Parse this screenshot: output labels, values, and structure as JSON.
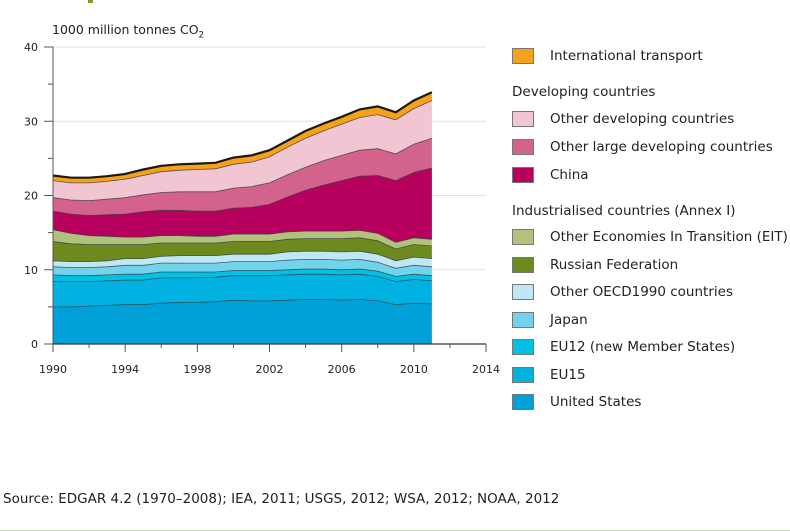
{
  "chart_data": {
    "type": "area",
    "stacked": true,
    "title": "",
    "ylabel": "1000 million tonnes CO2",
    "ylabel_main": "1000 million tonnes CO",
    "ylabel_sub": "2",
    "xlabel": "",
    "xlim": [
      1990,
      2014
    ],
    "ylim": [
      0,
      40
    ],
    "yticks": [
      0,
      10,
      20,
      30,
      40
    ],
    "xticks": [
      1990,
      1994,
      1998,
      2002,
      2006,
      2010,
      2014
    ],
    "ytick_labels": [
      "0",
      "10",
      "20",
      "30",
      "40"
    ],
    "xtick_labels": [
      "1990",
      "1994",
      "1998",
      "2002",
      "2006",
      "2010",
      "2014"
    ],
    "grid": "horizontal",
    "legend_position": "right",
    "x": [
      1990,
      1991,
      1992,
      1993,
      1994,
      1995,
      1996,
      1997,
      1998,
      1999,
      2000,
      2001,
      2002,
      2003,
      2004,
      2005,
      2006,
      2007,
      2008,
      2009,
      2010,
      2011
    ],
    "series": [
      {
        "name": "United States",
        "color": "#00a0d8",
        "values": [
          5.0,
          5.0,
          5.1,
          5.2,
          5.3,
          5.3,
          5.5,
          5.6,
          5.6,
          5.7,
          5.9,
          5.8,
          5.8,
          5.9,
          6.0,
          6.0,
          5.9,
          6.0,
          5.8,
          5.3,
          5.5,
          5.4
        ]
      },
      {
        "name": "EU15",
        "color": "#00b1e2",
        "values": [
          3.4,
          3.4,
          3.3,
          3.3,
          3.3,
          3.3,
          3.4,
          3.3,
          3.3,
          3.3,
          3.3,
          3.4,
          3.4,
          3.4,
          3.4,
          3.4,
          3.4,
          3.4,
          3.3,
          3.1,
          3.2,
          3.1
        ]
      },
      {
        "name": "EU12 (new Member States)",
        "color": "#00c1e3",
        "values": [
          0.9,
          0.8,
          0.8,
          0.8,
          0.8,
          0.8,
          0.8,
          0.8,
          0.8,
          0.7,
          0.7,
          0.7,
          0.7,
          0.7,
          0.7,
          0.7,
          0.7,
          0.7,
          0.7,
          0.7,
          0.7,
          0.7
        ]
      },
      {
        "name": "Japan",
        "color": "#73d2ec",
        "values": [
          1.1,
          1.1,
          1.1,
          1.1,
          1.2,
          1.2,
          1.2,
          1.2,
          1.2,
          1.2,
          1.2,
          1.2,
          1.2,
          1.3,
          1.3,
          1.3,
          1.3,
          1.3,
          1.2,
          1.1,
          1.2,
          1.2
        ]
      },
      {
        "name": "Other OECD1990 countries",
        "color": "#bfe8f4",
        "values": [
          0.8,
          0.8,
          0.8,
          0.8,
          0.9,
          0.9,
          0.9,
          1.0,
          1.0,
          1.0,
          1.0,
          1.0,
          1.0,
          1.1,
          1.1,
          1.1,
          1.1,
          1.1,
          1.1,
          1.0,
          1.1,
          1.1
        ]
      },
      {
        "name": "Russian Federation",
        "color": "#6e8a1e",
        "values": [
          2.6,
          2.4,
          2.3,
          2.2,
          1.9,
          1.9,
          1.8,
          1.7,
          1.7,
          1.7,
          1.7,
          1.7,
          1.7,
          1.7,
          1.7,
          1.7,
          1.8,
          1.8,
          1.8,
          1.6,
          1.7,
          1.7
        ]
      },
      {
        "name": "Other Economies In Transition (EIT)",
        "color": "#b3c17d",
        "values": [
          1.6,
          1.4,
          1.2,
          1.1,
          1.0,
          1.0,
          1.0,
          1.0,
          0.9,
          0.9,
          1.0,
          1.0,
          1.0,
          1.0,
          1.0,
          1.0,
          1.0,
          1.0,
          1.0,
          0.9,
          0.9,
          0.9
        ]
      },
      {
        "name": "China",
        "color": "#b8005e",
        "values": [
          2.5,
          2.6,
          2.7,
          2.9,
          3.1,
          3.4,
          3.4,
          3.4,
          3.4,
          3.4,
          3.5,
          3.6,
          4.0,
          4.7,
          5.5,
          6.2,
          6.8,
          7.3,
          7.8,
          8.3,
          8.8,
          9.6
        ]
      },
      {
        "name": "Other large developing countries",
        "color": "#d3638c",
        "values": [
          1.8,
          1.9,
          2.0,
          2.1,
          2.2,
          2.3,
          2.4,
          2.5,
          2.6,
          2.6,
          2.7,
          2.8,
          2.9,
          3.0,
          3.1,
          3.3,
          3.4,
          3.5,
          3.6,
          3.6,
          3.8,
          4.0
        ]
      },
      {
        "name": "Other developing countries",
        "color": "#f2c5d3",
        "values": [
          2.3,
          2.3,
          2.4,
          2.4,
          2.5,
          2.6,
          2.8,
          2.9,
          3.0,
          3.1,
          3.2,
          3.3,
          3.5,
          3.7,
          3.9,
          4.0,
          4.2,
          4.4,
          4.6,
          4.6,
          4.8,
          5.1
        ]
      },
      {
        "name": "International transport",
        "color": "#f7a11a",
        "values": [
          0.7,
          0.7,
          0.7,
          0.7,
          0.7,
          0.8,
          0.8,
          0.8,
          0.8,
          0.8,
          0.9,
          0.9,
          0.9,
          0.9,
          1.0,
          1.0,
          1.0,
          1.1,
          1.1,
          1.0,
          1.1,
          1.1
        ]
      }
    ]
  },
  "legend": {
    "international_transport": "International transport",
    "developing_heading": "Developing countries",
    "other_developing": "Other developing countries",
    "other_large_developing": "Other large developing countries",
    "china": "China",
    "industrialised_heading": "Industrialised countries (Annex I)",
    "other_eit": "Other Economies In Transition (EIT)",
    "russian_federation": "Russian Federation",
    "other_oecd": "Other OECD1990 countries",
    "japan": "Japan",
    "eu12": "EU12 (new Member States)",
    "eu15": "EU15",
    "united_states": "United States"
  },
  "colors": {
    "international_transport": "#f7a11a",
    "other_developing": "#f2c5d3",
    "other_large_developing": "#d3638c",
    "china": "#b8005e",
    "other_eit": "#b3c17d",
    "russian_federation": "#6e8a1e",
    "other_oecd": "#bfe8f4",
    "japan": "#73d2ec",
    "eu12": "#00c1e3",
    "eu15": "#00b1e2",
    "united_states": "#00a0d8"
  },
  "source": "Source: EDGAR 4.2 (1970–2008); IEA, 2011; USGS, 2012; WSA, 2012; NOAA, 2012"
}
